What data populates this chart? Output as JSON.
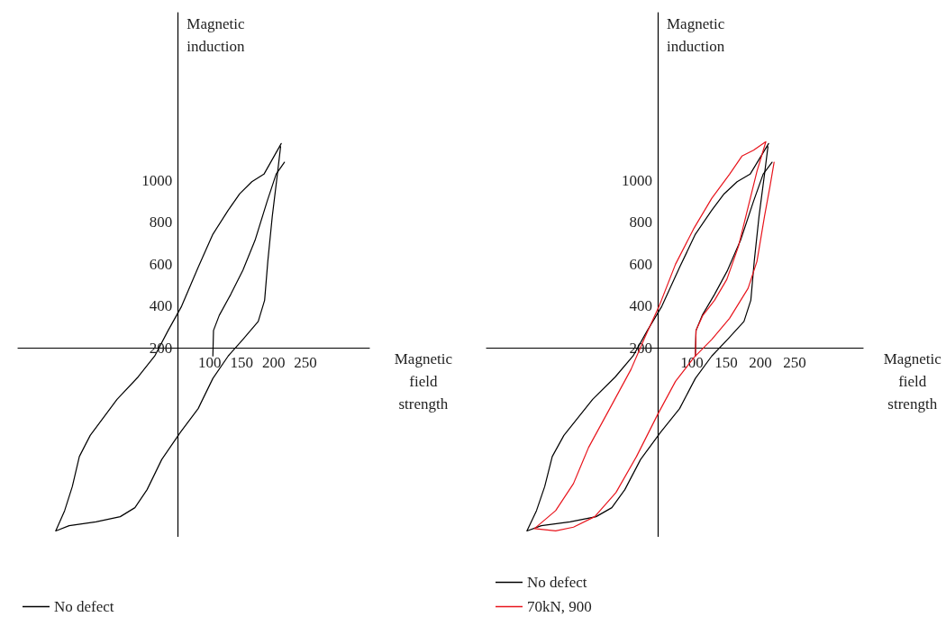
{
  "chart_data": [
    {
      "type": "line",
      "xlabel": "Magnetic field strength",
      "ylabel": "Magnetic induction",
      "xlim": [
        -200,
        350
      ],
      "ylim": [
        -700,
        1800
      ],
      "xticks": [
        100,
        150,
        200,
        250
      ],
      "yticks": [
        200,
        400,
        600,
        800,
        1000
      ],
      "legend": "bottom left",
      "marker": "none",
      "line_style": "solid",
      "grid": false,
      "series": [
        {
          "color": "#000000",
          "x": [
            105,
            106,
            115,
            133,
            152,
            171,
            190,
            204,
            217
          ],
          "values": [
            161,
            283,
            355,
            455,
            570,
            713,
            900,
            1029,
            1086
          ]
        },
        {
          "name": "No defect",
          "color": "#000000",
          "x": [
            212,
            185,
            166,
            147,
            129,
            105,
            82,
            56,
            35,
            14,
            -12,
            -45,
            -87,
            -104,
            -115,
            -127,
            -141,
            -120,
            -78,
            -40,
            -17,
            2,
            25,
            54,
            82,
            105,
            129,
            152,
            176,
            186,
            191,
            198,
            206,
            211
          ],
          "values": [
            1175,
            1029,
            993,
            935,
            857,
            742,
            584,
            398,
            283,
            161,
            61,
            -46,
            -218,
            -319,
            -462,
            -577,
            -674,
            -649,
            -631,
            -606,
            -563,
            -477,
            -333,
            -204,
            -90,
            54,
            161,
            240,
            326,
            427,
            613,
            828,
            1029,
            1160
          ]
        }
      ]
    },
    {
      "type": "line",
      "xlabel": "Magnetic field strength",
      "ylabel": "Magnetic induction",
      "xlim": [
        -200,
        350
      ],
      "ylim": [
        -700,
        1800
      ],
      "xticks": [
        100,
        150,
        200,
        250
      ],
      "yticks": [
        200,
        400,
        600,
        800,
        1000
      ],
      "legend": "bottom left",
      "marker": "none",
      "line_style": "solid",
      "grid": false,
      "series": [
        {
          "color": "#000000",
          "x": [
            105,
            106,
            115,
            133,
            152,
            171,
            190,
            204,
            217
          ],
          "values": [
            161,
            283,
            355,
            455,
            570,
            713,
            900,
            1029,
            1086
          ]
        },
        {
          "name": "No defect",
          "color": "#000000",
          "x": [
            212,
            185,
            166,
            147,
            129,
            105,
            82,
            56,
            35,
            14,
            -12,
            -45,
            -87,
            -104,
            -115,
            -127,
            -141,
            -120,
            -78,
            -40,
            -17,
            2,
            25,
            54,
            82,
            105,
            129,
            152,
            176,
            186,
            191,
            198,
            206,
            211
          ],
          "values": [
            1175,
            1029,
            993,
            935,
            857,
            742,
            584,
            398,
            283,
            161,
            61,
            -46,
            -218,
            -319,
            -462,
            -577,
            -674,
            -649,
            -631,
            -606,
            -563,
            -477,
            -333,
            -204,
            -90,
            54,
            161,
            240,
            326,
            427,
            613,
            828,
            1029,
            1160
          ]
        },
        {
          "name": "70kN, 900",
          "color": "#e8141c",
          "x": [
            105,
            106,
            116,
            133,
            151,
            168,
            182,
            195,
            208,
            190,
            173,
            155,
            129,
            103,
            76,
            52,
            32,
            11,
            -20,
            -51,
            -73,
            -99,
            -130,
            -99,
            -73,
            -42,
            -11,
            19,
            50,
            76,
            103,
            129,
            155,
            182,
            195,
            206,
            214,
            220
          ],
          "values": [
            161,
            283,
            355,
            427,
            527,
            685,
            871,
            1043,
            1184,
            1143,
            1115,
            1029,
            914,
            771,
            599,
            398,
            255,
            97,
            -90,
            -276,
            -448,
            -577,
            -663,
            -674,
            -656,
            -606,
            -491,
            -319,
            -118,
            40,
            154,
            240,
            341,
            484,
            613,
            828,
            971,
            1086
          ]
        }
      ]
    }
  ]
}
